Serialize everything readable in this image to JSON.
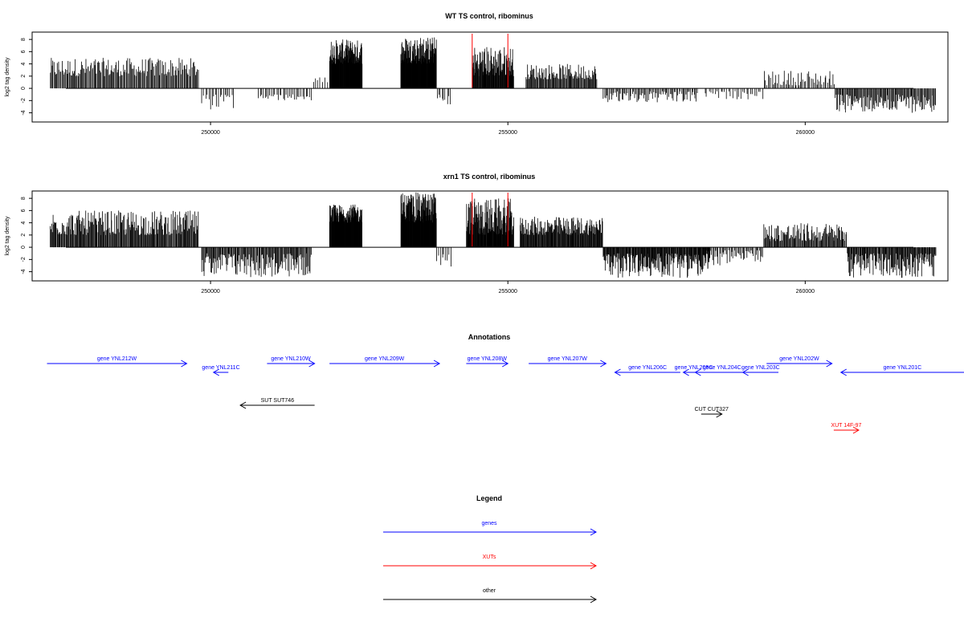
{
  "colors": {
    "gene": "#0000ff",
    "xut": "#ff0000",
    "other": "#000000",
    "marker": "#ff0000",
    "bars": "#000000"
  },
  "chart_data": [
    {
      "type": "bar",
      "title": "WT TS control, ribominus",
      "ylabel": "log2 tag density",
      "xlim": [
        247000,
        262400
      ],
      "ylim": [
        -5.5,
        9.2
      ],
      "xticks": [
        250000,
        255000,
        260000
      ],
      "xtick_labels": [
        "250000",
        "255000",
        "260000"
      ],
      "yticks": [
        8,
        6,
        4,
        2,
        0,
        -2,
        -4
      ],
      "ytick_labels": [
        "8",
        "6",
        "4",
        "2",
        "0",
        "-2",
        "-4"
      ],
      "marker_lines": [
        254400,
        255000
      ],
      "regions": [
        {
          "x": [
            247300,
            249800
          ],
          "max": [
            2,
            5
          ],
          "sign": 1,
          "density": 18
        },
        {
          "x": [
            249850,
            250400
          ],
          "max": [
            1,
            3.5
          ],
          "sign": -1,
          "density": 10
        },
        {
          "x": [
            250800,
            251700
          ],
          "max": [
            1,
            2
          ],
          "sign": -1,
          "density": 10
        },
        {
          "x": [
            251700,
            252050
          ],
          "max": [
            1,
            2
          ],
          "sign": 1,
          "density": 6
        },
        {
          "x": [
            252000,
            252550
          ],
          "max": [
            4,
            8
          ],
          "sign": 1,
          "density": 60
        },
        {
          "x": [
            253200,
            253800
          ],
          "max": [
            4,
            8.5
          ],
          "sign": 1,
          "density": 60
        },
        {
          "x": [
            253800,
            254050
          ],
          "max": [
            1,
            3
          ],
          "sign": -1,
          "density": 10
        },
        {
          "x": [
            254400,
            255100
          ],
          "max": [
            2,
            7
          ],
          "sign": 1,
          "density": 40
        },
        {
          "x": [
            255300,
            256500
          ],
          "max": [
            1.5,
            4
          ],
          "sign": 1,
          "density": 22
        },
        {
          "x": [
            256600,
            258200
          ],
          "max": [
            0.5,
            2.5
          ],
          "sign": -1,
          "density": 14
        },
        {
          "x": [
            258300,
            259300
          ],
          "max": [
            0.5,
            1.8
          ],
          "sign": -1,
          "density": 8
        },
        {
          "x": [
            259300,
            260500
          ],
          "max": [
            0.5,
            3
          ],
          "sign": 1,
          "density": 12
        },
        {
          "x": [
            260500,
            262200
          ],
          "max": [
            1,
            4
          ],
          "sign": -1,
          "density": 20
        }
      ]
    },
    {
      "type": "bar",
      "title": "xrn1 TS control, ribominus",
      "ylabel": "log2 tag density",
      "xlim": [
        247000,
        262400
      ],
      "ylim": [
        -5.5,
        9.2
      ],
      "xticks": [
        250000,
        255000,
        260000
      ],
      "xtick_labels": [
        "250000",
        "255000",
        "260000"
      ],
      "yticks": [
        8,
        6,
        4,
        2,
        0,
        -2,
        -4
      ],
      "ytick_labels": [
        "8",
        "6",
        "4",
        "2",
        "0",
        "-2",
        "-4"
      ],
      "marker_lines": [
        254400,
        255000
      ],
      "regions": [
        {
          "x": [
            247300,
            249800
          ],
          "max": [
            2,
            6
          ],
          "sign": 1,
          "density": 24
        },
        {
          "x": [
            249850,
            251700
          ],
          "max": [
            1,
            5
          ],
          "sign": -1,
          "density": 22
        },
        {
          "x": [
            252000,
            252550
          ],
          "max": [
            4,
            7
          ],
          "sign": 1,
          "density": 60
        },
        {
          "x": [
            253200,
            253800
          ],
          "max": [
            4,
            9
          ],
          "sign": 1,
          "density": 60
        },
        {
          "x": [
            253800,
            254050
          ],
          "max": [
            1,
            3.5
          ],
          "sign": -1,
          "density": 10
        },
        {
          "x": [
            254300,
            255100
          ],
          "max": [
            2,
            8
          ],
          "sign": 1,
          "density": 45
        },
        {
          "x": [
            255200,
            256600
          ],
          "max": [
            2,
            5
          ],
          "sign": 1,
          "density": 30
        },
        {
          "x": [
            256600,
            258400
          ],
          "max": [
            1,
            5
          ],
          "sign": -1,
          "density": 30
        },
        {
          "x": [
            258300,
            259300
          ],
          "max": [
            0.5,
            3
          ],
          "sign": -1,
          "density": 14
        },
        {
          "x": [
            259300,
            260700
          ],
          "max": [
            1,
            4
          ],
          "sign": 1,
          "density": 22
        },
        {
          "x": [
            260700,
            262200
          ],
          "max": [
            1,
            5
          ],
          "sign": -1,
          "density": 26
        }
      ]
    }
  ],
  "annotations": {
    "title": "Annotations",
    "features": [
      {
        "label": "gene YNL212W",
        "type": "gene",
        "start": 247250,
        "end": 249600,
        "row": 0
      },
      {
        "label": "gene YNL211C",
        "type": "gene",
        "start": 250300,
        "end": 250050,
        "row": 1
      },
      {
        "label": "gene YNL210W",
        "type": "gene",
        "start": 250950,
        "end": 251750,
        "row": 0
      },
      {
        "label": "gene YNL209W",
        "type": "gene",
        "start": 252000,
        "end": 253850,
        "row": 0
      },
      {
        "label": "gene YNL208W",
        "type": "gene",
        "start": 254300,
        "end": 255000,
        "row": 0
      },
      {
        "label": "gene YNL207W",
        "type": "gene",
        "start": 255350,
        "end": 256650,
        "row": 0
      },
      {
        "label": "gene YNL206C",
        "type": "gene",
        "start": 257900,
        "end": 256800,
        "row": 1
      },
      {
        "label": "gene YNL205C",
        "type": "gene",
        "start": 258300,
        "end": 257950,
        "row": 1
      },
      {
        "label": "gene YNL204C",
        "type": "gene",
        "start": 259050,
        "end": 258150,
        "row": 1
      },
      {
        "label": "gene YNL203C",
        "type": "gene",
        "start": 259550,
        "end": 258950,
        "row": 1
      },
      {
        "label": "gene YNL202W",
        "type": "gene",
        "start": 259350,
        "end": 260450,
        "row": 0
      },
      {
        "label": "gene YNL201C",
        "type": "gene",
        "start": 263000,
        "end": 260600,
        "row": 1
      },
      {
        "label": "SUT SUT746",
        "type": "other",
        "start": 251750,
        "end": 250500,
        "row": 4
      },
      {
        "label": "CUT CUT327",
        "type": "other",
        "start": 258250,
        "end": 258600,
        "row": 5
      },
      {
        "label": "XUT 14F-97",
        "type": "xut",
        "start": 260480,
        "end": 260900,
        "row": 7
      }
    ]
  },
  "legend": {
    "title": "Legend",
    "items": [
      {
        "label": "genes",
        "type": "gene"
      },
      {
        "label": "XUTs",
        "type": "xut"
      },
      {
        "label": "other",
        "type": "other"
      }
    ]
  }
}
